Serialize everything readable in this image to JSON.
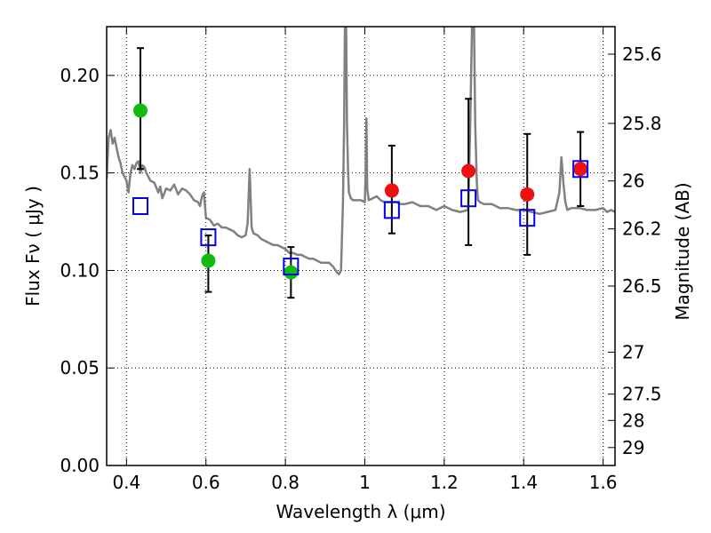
{
  "chart_data": {
    "type": "scatter",
    "title": "",
    "xlabel": "Wavelength  λ (μm)",
    "ylabel": "Flux  Fν  ( μJy )",
    "ylabel_right": "Magnitude (AB)",
    "xlim": [
      0.35,
      1.63
    ],
    "ylim": [
      0.0,
      0.225
    ],
    "grid": true,
    "x_ticks": [
      0.4,
      0.6,
      0.8,
      1.0,
      1.2,
      1.4,
      1.6
    ],
    "x_tick_labels": [
      "0.4",
      "0.6",
      "0.8",
      "1",
      "1.2",
      "1.4",
      "1.6"
    ],
    "y_ticks": [
      0.0,
      0.05,
      0.1,
      0.15,
      0.2
    ],
    "y_tick_labels": [
      "0.00",
      "0.05",
      "0.10",
      "0.15",
      "0.20"
    ],
    "mag_ticks": [
      {
        "label": "25.6",
        "flux": 0.2109
      },
      {
        "label": "25.8",
        "flux": 0.1754
      },
      {
        "label": "26",
        "flux": 0.1459
      },
      {
        "label": "26.2",
        "flux": 0.1213
      },
      {
        "label": "26.5",
        "flux": 0.092
      },
      {
        "label": "27",
        "flux": 0.0581
      },
      {
        "label": "27.5",
        "flux": 0.0366
      },
      {
        "label": "28",
        "flux": 0.0231
      },
      {
        "label": "29",
        "flux": 0.0092
      }
    ],
    "colors": {
      "template": "#808080",
      "green": "#11bb11",
      "red": "#ee1111",
      "box": "#0000ee",
      "errorbar": "#000000",
      "grid": "#000000"
    },
    "template_spectrum": {
      "x": [
        0.35,
        0.355,
        0.36,
        0.365,
        0.37,
        0.375,
        0.38,
        0.385,
        0.39,
        0.395,
        0.4,
        0.405,
        0.41,
        0.415,
        0.42,
        0.425,
        0.43,
        0.435,
        0.44,
        0.445,
        0.45,
        0.46,
        0.47,
        0.48,
        0.485,
        0.49,
        0.5,
        0.51,
        0.52,
        0.53,
        0.54,
        0.55,
        0.56,
        0.57,
        0.58,
        0.585,
        0.59,
        0.595,
        0.6,
        0.61,
        0.62,
        0.63,
        0.64,
        0.65,
        0.66,
        0.67,
        0.68,
        0.69,
        0.7,
        0.705,
        0.71,
        0.715,
        0.72,
        0.73,
        0.74,
        0.75,
        0.76,
        0.77,
        0.78,
        0.79,
        0.8,
        0.81,
        0.82,
        0.83,
        0.84,
        0.85,
        0.86,
        0.87,
        0.88,
        0.89,
        0.9,
        0.91,
        0.92,
        0.93,
        0.935,
        0.94,
        0.945,
        0.948,
        0.95,
        0.953,
        0.955,
        0.958,
        0.96,
        0.965,
        0.97,
        0.98,
        0.99,
        1.0,
        1.002,
        1.004,
        1.006,
        1.01,
        1.02,
        1.03,
        1.04,
        1.05,
        1.06,
        1.07,
        1.08,
        1.09,
        1.1,
        1.12,
        1.14,
        1.16,
        1.18,
        1.2,
        1.22,
        1.24,
        1.26,
        1.265,
        1.27,
        1.275,
        1.278,
        1.282,
        1.285,
        1.29,
        1.3,
        1.32,
        1.34,
        1.36,
        1.38,
        1.4,
        1.42,
        1.44,
        1.46,
        1.48,
        1.49,
        1.495,
        1.5,
        1.505,
        1.51,
        1.52,
        1.54,
        1.56,
        1.58,
        1.6,
        1.61,
        1.62,
        1.63
      ],
      "y": [
        0.147,
        0.168,
        0.172,
        0.165,
        0.168,
        0.163,
        0.158,
        0.155,
        0.15,
        0.148,
        0.146,
        0.14,
        0.15,
        0.154,
        0.152,
        0.155,
        0.156,
        0.15,
        0.154,
        0.153,
        0.15,
        0.146,
        0.145,
        0.14,
        0.143,
        0.137,
        0.142,
        0.141,
        0.144,
        0.139,
        0.142,
        0.141,
        0.139,
        0.136,
        0.135,
        0.133,
        0.138,
        0.14,
        0.127,
        0.126,
        0.123,
        0.124,
        0.122,
        0.122,
        0.121,
        0.12,
        0.118,
        0.117,
        0.118,
        0.124,
        0.152,
        0.122,
        0.119,
        0.118,
        0.116,
        0.115,
        0.114,
        0.113,
        0.113,
        0.112,
        0.111,
        0.109,
        0.109,
        0.108,
        0.108,
        0.107,
        0.106,
        0.106,
        0.105,
        0.104,
        0.104,
        0.104,
        0.102,
        0.099,
        0.098,
        0.1,
        0.135,
        0.175,
        0.225,
        0.225,
        0.175,
        0.15,
        0.14,
        0.137,
        0.136,
        0.136,
        0.136,
        0.135,
        0.15,
        0.178,
        0.142,
        0.136,
        0.137,
        0.138,
        0.136,
        0.135,
        0.135,
        0.135,
        0.135,
        0.134,
        0.134,
        0.135,
        0.133,
        0.133,
        0.131,
        0.133,
        0.131,
        0.13,
        0.131,
        0.17,
        0.225,
        0.225,
        0.175,
        0.145,
        0.136,
        0.135,
        0.134,
        0.134,
        0.132,
        0.132,
        0.131,
        0.131,
        0.13,
        0.129,
        0.13,
        0.131,
        0.14,
        0.158,
        0.145,
        0.135,
        0.131,
        0.132,
        0.132,
        0.131,
        0.131,
        0.132,
        0.13,
        0.131,
        0.13
      ]
    },
    "series": [
      {
        "marker": "circle",
        "color": "green",
        "points": [
          {
            "x": 0.435,
            "y": 0.182,
            "ylow": 0.152,
            "yhigh": 0.214
          },
          {
            "x": 0.606,
            "y": 0.105,
            "ylow": 0.089,
            "yhigh": 0.118
          },
          {
            "x": 0.814,
            "y": 0.099,
            "ylow": 0.086,
            "yhigh": 0.112
          }
        ]
      },
      {
        "marker": "circle",
        "color": "red",
        "points": [
          {
            "x": 1.068,
            "y": 0.141,
            "ylow": 0.119,
            "yhigh": 0.164
          },
          {
            "x": 1.261,
            "y": 0.151,
            "ylow": 0.113,
            "yhigh": 0.188
          },
          {
            "x": 1.409,
            "y": 0.139,
            "ylow": 0.108,
            "yhigh": 0.17
          },
          {
            "x": 1.543,
            "y": 0.152,
            "ylow": 0.133,
            "yhigh": 0.171
          }
        ]
      },
      {
        "marker": "square-open",
        "color": "box",
        "points": [
          {
            "x": 0.435,
            "y": 0.133
          },
          {
            "x": 0.606,
            "y": 0.117
          },
          {
            "x": 0.814,
            "y": 0.102
          },
          {
            "x": 1.068,
            "y": 0.131
          },
          {
            "x": 1.261,
            "y": 0.137
          },
          {
            "x": 1.409,
            "y": 0.127
          },
          {
            "x": 1.543,
            "y": 0.152
          }
        ]
      }
    ]
  }
}
